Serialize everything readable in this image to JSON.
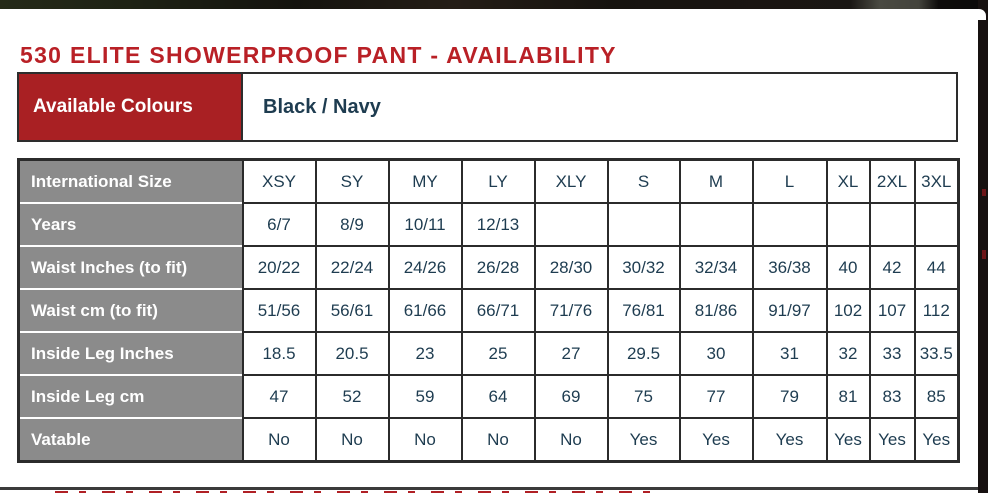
{
  "page": {
    "title": "530 ELITE SHOWERPROOF PANT - AVAILABILITY"
  },
  "colours": {
    "label": "Available Colours",
    "value": "Black / Navy"
  },
  "size_table": {
    "rows": [
      {
        "label": "International Size",
        "values": [
          "XSY",
          "SY",
          "MY",
          "LY",
          "XLY",
          "S",
          "M",
          "L",
          "XL",
          "2XL",
          "3XL"
        ]
      },
      {
        "label": "Years",
        "values": [
          "6/7",
          "8/9",
          "10/11",
          "12/13",
          "",
          "",
          "",
          "",
          "",
          "",
          ""
        ]
      },
      {
        "label": "Waist Inches (to fit)",
        "values": [
          "20/22",
          "22/24",
          "24/26",
          "26/28",
          "28/30",
          "30/32",
          "32/34",
          "36/38",
          "40",
          "42",
          "44"
        ]
      },
      {
        "label": "Waist cm (to fit)",
        "values": [
          "51/56",
          "56/61",
          "61/66",
          "66/71",
          "71/76",
          "76/81",
          "81/86",
          "91/97",
          "102",
          "107",
          "112"
        ]
      },
      {
        "label": "Inside Leg Inches",
        "values": [
          "18.5",
          "20.5",
          "23",
          "25",
          "27",
          "29.5",
          "30",
          "31",
          "32",
          "33",
          "33.5"
        ]
      },
      {
        "label": "Inside Leg cm",
        "values": [
          "47",
          "52",
          "59",
          "64",
          "69",
          "75",
          "77",
          "79",
          "81",
          "83",
          "85"
        ]
      },
      {
        "label": "Vatable",
        "values": [
          "No",
          "No",
          "No",
          "No",
          "No",
          "Yes",
          "Yes",
          "Yes",
          "Yes",
          "Yes",
          "Yes"
        ]
      }
    ]
  },
  "colors": {
    "accent_red": "#b92026",
    "cell_red": "#a92023",
    "header_gray": "#8b8b8b",
    "text_navy": "#1e3c50",
    "border_dark": "#2b2b2b"
  }
}
